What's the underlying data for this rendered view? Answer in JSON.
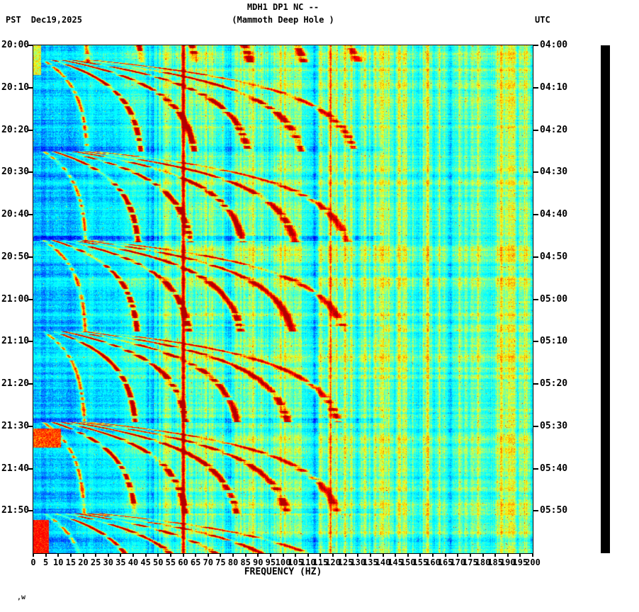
{
  "header": {
    "station": "MDH1 DP1 NC --",
    "station_desc": "(Mammoth Deep Hole )",
    "tz_left": "PST",
    "date": "Dec19,2025",
    "tz_right": "UTC"
  },
  "footnote": ",w",
  "chart_data": {
    "type": "heatmap",
    "subtype": "seismic-spectrogram",
    "title": "MDH1 DP1 NC -- (Mammoth Deep Hole ) spectrogram",
    "xlabel": "FREQUENCY (HZ)",
    "x_range": [
      0,
      200
    ],
    "x_ticks": [
      0,
      5,
      10,
      15,
      20,
      25,
      30,
      35,
      40,
      45,
      50,
      55,
      60,
      65,
      70,
      75,
      80,
      85,
      90,
      95,
      100,
      105,
      110,
      115,
      120,
      125,
      130,
      135,
      140,
      145,
      150,
      155,
      160,
      165,
      170,
      175,
      180,
      185,
      190,
      195,
      200
    ],
    "duration_min": 120,
    "time_start_pst": "20:00",
    "time_end_pst": "22:00",
    "time_start_utc": "04:00",
    "time_end_utc": "06:00",
    "y_ticks_left_pst": [
      "20:00",
      "20:10",
      "20:20",
      "20:30",
      "20:40",
      "20:50",
      "21:00",
      "21:10",
      "21:20",
      "21:30",
      "21:40",
      "21:50"
    ],
    "y_ticks_right_utc": [
      "04:00",
      "04:10",
      "04:20",
      "04:30",
      "04:40",
      "04:50",
      "05:00",
      "05:10",
      "05:20",
      "05:30",
      "05:40",
      "05:50"
    ],
    "colormap": "jet",
    "legend": "none",
    "grid": false,
    "description": "Cyan/turquoise broadband background with yellow vertical banding above ~45 Hz; darker blue band ~3-20 Hz; repeating groups of dark-red rising harmonic glide arcs (~every 21 min) from ~20 Hz up to ~130 Hz; solid dark-red vertical powerline at 60 Hz; faint red line near 119 Hz; pale horizontal break lines between event groups; orange/red low-frequency hot spots near 21:33 PST and at the bottom-left; solid black amplitude bar at right.",
    "generator": {
      "seed": 987654321,
      "events_start_min": [
        -17.5,
        3.5,
        25,
        46,
        67.5,
        89,
        110.5
      ],
      "event_duration_min": 21.5,
      "fundamental_start_hz": 4,
      "fundamental_end_hz": 21.5,
      "rise_tau_min": 6.5,
      "harmonics": 6,
      "boundary_lines_min": [
        24.5,
        45.5,
        67,
        88.5,
        110
      ],
      "powerline_hz": 60,
      "faint_line_hz": 119,
      "hotspots": [
        {
          "t0": 90.5,
          "t1": 95,
          "f0": 0,
          "f1": 11,
          "v": 0.78
        },
        {
          "t0": 112,
          "t1": 120,
          "f0": 0,
          "f1": 6,
          "v": 0.85
        },
        {
          "t0": 0,
          "t1": 7,
          "f0": 0,
          "f1": 3,
          "v": 0.6
        }
      ]
    }
  },
  "amplitude_bar": {
    "color": "#000000"
  }
}
